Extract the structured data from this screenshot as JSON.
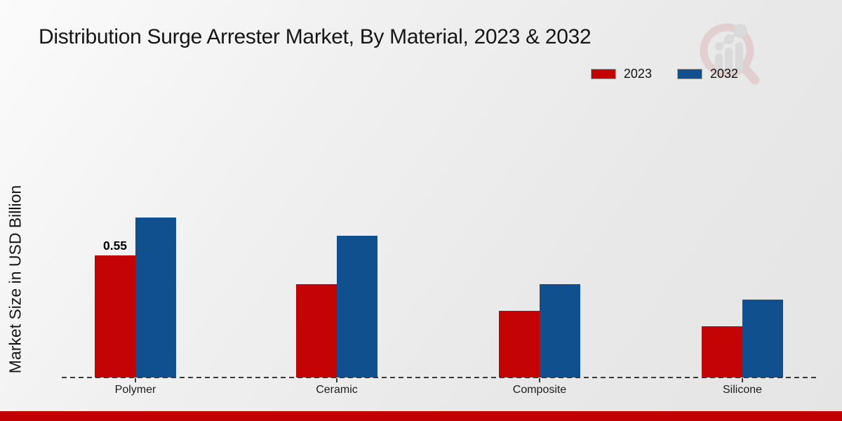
{
  "chart": {
    "title": "Distribution Surge Arrester Market, By Material, 2023 & 2032",
    "ylabel": "Market Size in USD Billion"
  },
  "legend": {
    "items": [
      {
        "label": "2023",
        "color": "#c40404"
      },
      {
        "label": "2032",
        "color": "#11508f"
      }
    ]
  },
  "colors": {
    "series_2023": "#c40404",
    "series_2032": "#11508f",
    "footer_bar": "#c00000",
    "axis": "#3b3b3b",
    "watermark_pink": "#ddbaba",
    "watermark_gray": "#cfcfcf"
  },
  "watermark_icon": "magnifier-growth-chart-logo",
  "chart_data": {
    "type": "bar",
    "title": "Distribution Surge Arrester Market, By Material, 2023 & 2032",
    "xlabel": "",
    "ylabel": "Market Size in USD Billion",
    "categories": [
      "Polymer",
      "Ceramic",
      "Composite",
      "Silicone"
    ],
    "series": [
      {
        "name": "2023",
        "color": "#c40404",
        "values": [
          0.55,
          0.42,
          0.3,
          0.23
        ]
      },
      {
        "name": "2032",
        "color": "#11508f",
        "values": [
          0.72,
          0.64,
          0.42,
          0.35
        ]
      }
    ],
    "data_labels": [
      {
        "series": "2023",
        "category": "Polymer",
        "text": "0.55"
      }
    ],
    "ylim": [
      0,
      0.8
    ],
    "grid": false,
    "y_axis_ticks_visible": false,
    "baseline_style": "dashed",
    "legend_position": "top-right"
  }
}
